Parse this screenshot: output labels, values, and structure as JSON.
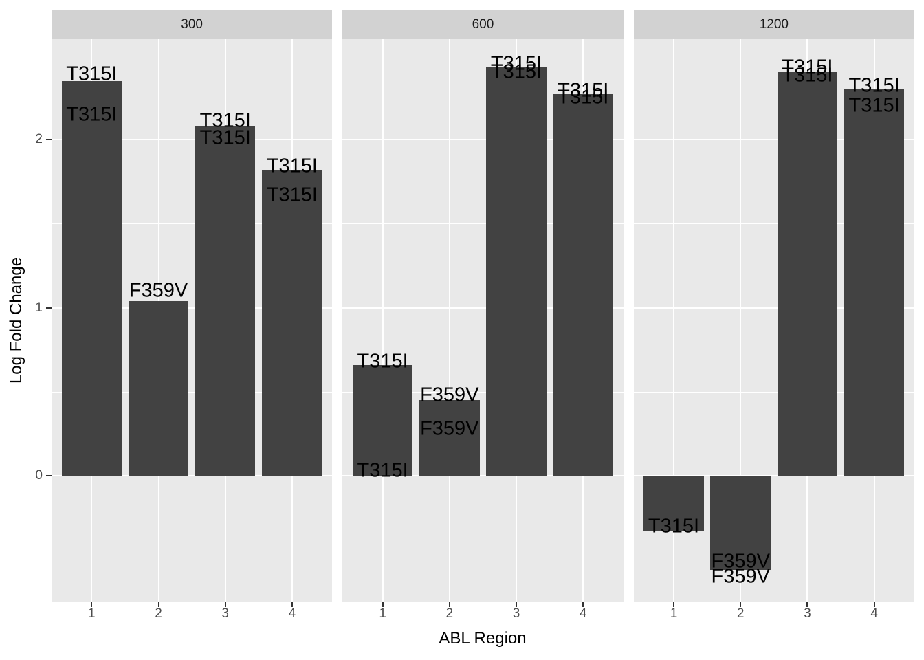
{
  "chart_data": {
    "type": "bar",
    "title": "",
    "xlabel": "ABL Region",
    "ylabel": "Log Fold Change",
    "categories": [
      "1",
      "2",
      "3",
      "4"
    ],
    "y_tick_labels": [
      "0",
      "1",
      "2"
    ],
    "y_tick_values": [
      0,
      1,
      2
    ],
    "y_minor_tick_values": [
      -0.5,
      0.5,
      1.5,
      2.5
    ],
    "ylim": [
      -0.745,
      2.6
    ],
    "grid": true,
    "legend_position": "none",
    "facet_values": [
      "300",
      "600",
      "1200"
    ],
    "facets": [
      {
        "facet": "300",
        "bars": [
          {
            "region": "1",
            "value": 2.35,
            "point_labels": [
              {
                "text": "T315I",
                "y": 2.39
              },
              {
                "text": "T315I",
                "y": 2.15
              }
            ]
          },
          {
            "region": "2",
            "value": 1.04,
            "point_labels": [
              {
                "text": "F359V",
                "y": 1.1
              }
            ]
          },
          {
            "region": "3",
            "value": 2.08,
            "point_labels": [
              {
                "text": "T315I",
                "y": 2.11
              },
              {
                "text": "T315I",
                "y": 2.01
              }
            ]
          },
          {
            "region": "4",
            "value": 1.82,
            "point_labels": [
              {
                "text": "T315I",
                "y": 1.84
              },
              {
                "text": "T315I",
                "y": 1.67
              }
            ]
          }
        ]
      },
      {
        "facet": "600",
        "bars": [
          {
            "region": "1",
            "value": 0.66,
            "point_labels": [
              {
                "text": "T315I",
                "y": 0.68
              },
              {
                "text": "T315I",
                "y": 0.03
              }
            ]
          },
          {
            "region": "2",
            "value": 0.45,
            "point_labels": [
              {
                "text": "F359V",
                "y": 0.48
              },
              {
                "text": "F359V",
                "y": 0.28
              }
            ]
          },
          {
            "region": "3",
            "value": 2.43,
            "point_labels": [
              {
                "text": "T315I",
                "y": 2.45
              },
              {
                "text": "T315I",
                "y": 2.4
              }
            ]
          },
          {
            "region": "4",
            "value": 2.27,
            "point_labels": [
              {
                "text": "T315I",
                "y": 2.29
              },
              {
                "text": "T315I",
                "y": 2.25
              }
            ]
          }
        ]
      },
      {
        "facet": "1200",
        "bars": [
          {
            "region": "1",
            "value": -0.33,
            "point_labels": [
              {
                "text": "T315I",
                "y": -0.3
              }
            ]
          },
          {
            "region": "2",
            "value": -0.56,
            "point_labels": [
              {
                "text": "F359V",
                "y": -0.51
              },
              {
                "text": "F359V",
                "y": -0.6
              }
            ]
          },
          {
            "region": "3",
            "value": 2.4,
            "point_labels": [
              {
                "text": "T315I",
                "y": 2.43
              },
              {
                "text": "T315I",
                "y": 2.38
              }
            ]
          },
          {
            "region": "4",
            "value": 2.3,
            "point_labels": [
              {
                "text": "T315I",
                "y": 2.32
              },
              {
                "text": "T315I",
                "y": 2.2
              }
            ]
          }
        ]
      }
    ],
    "colors": {
      "bar_fill": "#424242",
      "panel_background": "#E9E9E9",
      "strip_background": "#D2D2D2",
      "gridline": "#FFFFFF",
      "axis_text": "#4D4D4D",
      "strip_text": "#1A1A1A",
      "axis_title_text": "#000000",
      "bar_label_text": "#000000",
      "tick_mark": "#333333"
    }
  }
}
